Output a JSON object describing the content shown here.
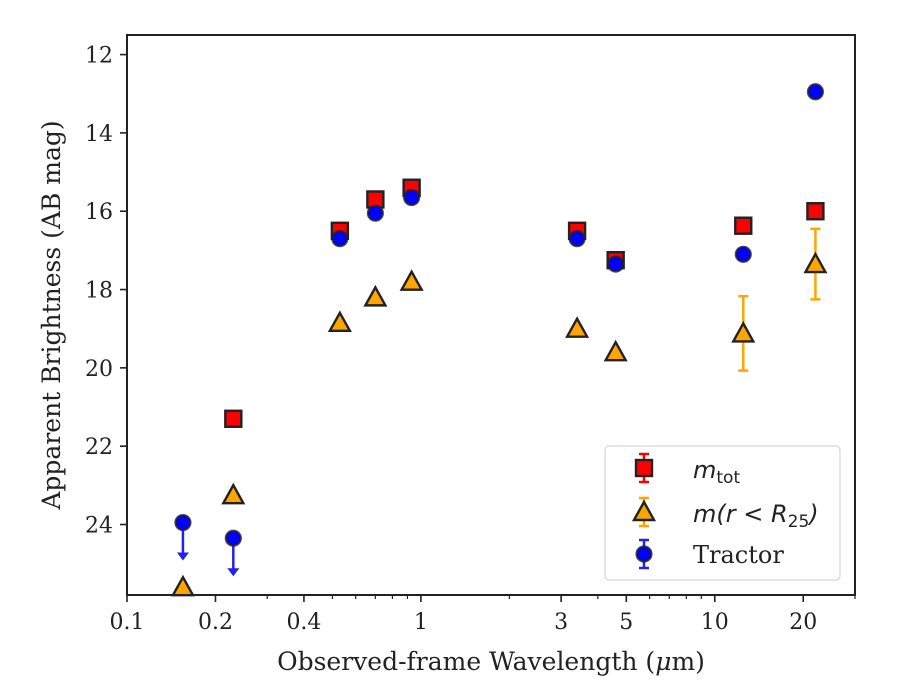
{
  "chart_data": {
    "type": "scatter",
    "xscale": "log",
    "yinverted": true,
    "xlim": [
      0.1,
      30
    ],
    "ylim": [
      25.8,
      11.5
    ],
    "xlabel_prefix": "Observed-frame Wavelength (",
    "xlabel_mu": "μ",
    "xlabel_suffix": "m)",
    "ylabel": "Apparent Brightness (AB mag)",
    "xticks": [
      {
        "value": 0.1,
        "label": "0.1"
      },
      {
        "value": 0.2,
        "label": "0.2"
      },
      {
        "value": 0.4,
        "label": "0.4"
      },
      {
        "value": 1,
        "label": "1"
      },
      {
        "value": 3,
        "label": "3"
      },
      {
        "value": 5,
        "label": "5"
      },
      {
        "value": 10,
        "label": "10"
      },
      {
        "value": 20,
        "label": "20"
      }
    ],
    "xminor": [
      0.3,
      0.5,
      0.6,
      0.7,
      0.8,
      0.9,
      2,
      4,
      6,
      7,
      8,
      9,
      30
    ],
    "yticks": [
      {
        "value": 12,
        "label": "12"
      },
      {
        "value": 14,
        "label": "14"
      },
      {
        "value": 16,
        "label": "16"
      },
      {
        "value": 18,
        "label": "18"
      },
      {
        "value": 20,
        "label": "20"
      },
      {
        "value": 22,
        "label": "22"
      },
      {
        "value": 24,
        "label": "24"
      }
    ],
    "series": [
      {
        "name": "m_tot",
        "marker": "square",
        "color": "#ff0000",
        "errcolor": "#ff0000",
        "points": [
          {
            "x": 0.23,
            "y": 21.3
          },
          {
            "x": 0.53,
            "y": 16.5
          },
          {
            "x": 0.7,
            "y": 15.7
          },
          {
            "x": 0.93,
            "y": 15.4
          },
          {
            "x": 3.4,
            "y": 16.5
          },
          {
            "x": 4.6,
            "y": 17.25
          },
          {
            "x": 12.5,
            "y": 16.37
          },
          {
            "x": 22,
            "y": 16.0
          }
        ]
      },
      {
        "name": "m(r < R25)",
        "marker": "triangle",
        "color": "#ffa500",
        "errcolor": "#ffa500",
        "points": [
          {
            "x": 0.155,
            "y": 25.6
          },
          {
            "x": 0.23,
            "y": 23.25
          },
          {
            "x": 0.53,
            "y": 18.85
          },
          {
            "x": 0.7,
            "y": 18.2
          },
          {
            "x": 0.93,
            "y": 17.8
          },
          {
            "x": 3.4,
            "y": 19.0
          },
          {
            "x": 4.6,
            "y": 19.6
          },
          {
            "x": 12.5,
            "y": 19.12,
            "err": [
              0.95,
              0.95
            ]
          },
          {
            "x": 22,
            "y": 17.35,
            "err": [
              0.9,
              0.9
            ]
          }
        ]
      },
      {
        "name": "Tractor",
        "marker": "circle",
        "color": "#0000ff",
        "errcolor": "#2222ee",
        "points": [
          {
            "x": 0.155,
            "y": 23.95,
            "upper_limit": true
          },
          {
            "x": 0.23,
            "y": 24.35,
            "upper_limit": true
          },
          {
            "x": 0.53,
            "y": 16.7
          },
          {
            "x": 0.7,
            "y": 16.05
          },
          {
            "x": 0.93,
            "y": 15.65
          },
          {
            "x": 3.4,
            "y": 16.7
          },
          {
            "x": 4.6,
            "y": 17.35
          },
          {
            "x": 12.5,
            "y": 17.1
          },
          {
            "x": 22,
            "y": 12.95
          }
        ]
      }
    ],
    "legend": {
      "placement": "lower right",
      "entries": [
        {
          "series": 0,
          "main": "m",
          "sub": "tot"
        },
        {
          "series": 1,
          "main": "m(r < R",
          "sub": "25",
          "close": ")"
        },
        {
          "series": 2,
          "label": "Tractor"
        }
      ]
    }
  }
}
